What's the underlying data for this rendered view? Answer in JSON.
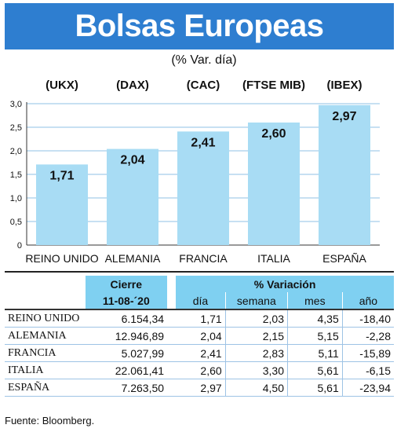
{
  "title": "Bolsas Europeas",
  "subtitle": "(% Var. día)",
  "chart_data": {
    "type": "bar",
    "title": "Bolsas Europeas",
    "subtitle": "(% Var. día)",
    "categories": [
      "REINO UNIDO",
      "ALEMANIA",
      "FRANCIA",
      "ITALIA",
      "ESPAÑA"
    ],
    "tickers": [
      "(UKX)",
      "(DAX)",
      "(CAC)",
      "(FTSE MIB)",
      "(IBEX)"
    ],
    "values": [
      1.71,
      2.04,
      2.41,
      2.6,
      2.97
    ],
    "value_labels": [
      "1,71",
      "2,04",
      "2,41",
      "2,60",
      "2,97"
    ],
    "ylim": [
      0,
      3.0
    ],
    "yticks": [
      0,
      0.5,
      1.0,
      1.5,
      2.0,
      2.5,
      3.0
    ],
    "ytick_labels": [
      "0",
      "0,5",
      "1,0",
      "1,5",
      "2,0",
      "2,5",
      "3,0"
    ],
    "grid": true,
    "bar_color": "#a8dcf4",
    "grid_color": "#8fc0e6"
  },
  "table": {
    "header_cierre": "Cierre",
    "header_variacion": "% Variación",
    "date": "11-08-´20",
    "cols": [
      "día",
      "semana",
      "mes",
      "año"
    ],
    "rows": [
      {
        "name": "REINO UNIDO",
        "cierre": "6.154,34",
        "dia": "1,71",
        "semana": "2,03",
        "mes": "4,35",
        "anio": "-18,40"
      },
      {
        "name": "ALEMANIA",
        "cierre": "12.946,89",
        "dia": "2,04",
        "semana": "2,15",
        "mes": "5,15",
        "anio": "-2,28"
      },
      {
        "name": "FRANCIA",
        "cierre": "5.027,99",
        "dia": "2,41",
        "semana": "2,83",
        "mes": "5,11",
        "anio": "-15,89"
      },
      {
        "name": "ITALIA",
        "cierre": "22.061,41",
        "dia": "2,60",
        "semana": "3,30",
        "mes": "5,61",
        "anio": "-6,15"
      },
      {
        "name": "ESPAÑA",
        "cierre": "7.263,50",
        "dia": "2,97",
        "semana": "4,50",
        "mes": "5,61",
        "anio": "-23,94"
      }
    ],
    "header_bg": "#7fd0f1"
  },
  "source": "Fuente: Bloomberg.",
  "header_color": "#2e7ed0"
}
